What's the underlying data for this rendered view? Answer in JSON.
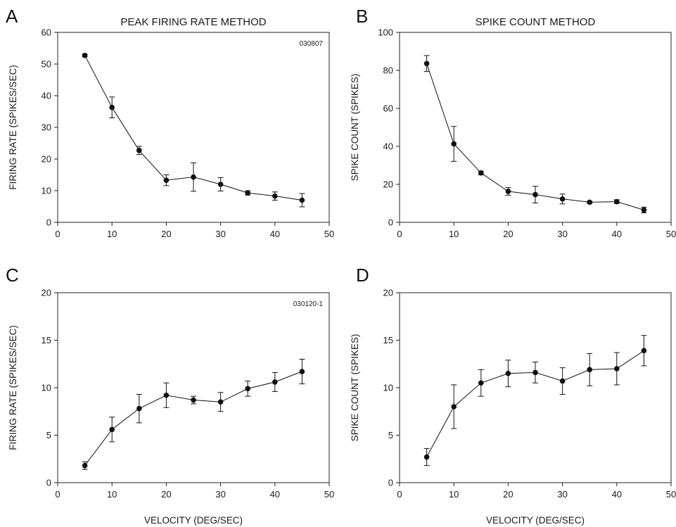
{
  "chart_data": [
    {
      "panel": "A",
      "type": "line",
      "title": "PEAK FIRING RATE METHOD",
      "annotation": "030807",
      "xlabel": "",
      "ylabel": "FIRING RATE (SPIKES/SEC)",
      "xlim": [
        0,
        50
      ],
      "ylim": [
        0,
        60
      ],
      "xticks": [
        0,
        10,
        20,
        30,
        40,
        50
      ],
      "yticks": [
        0,
        10,
        20,
        30,
        40,
        50,
        60
      ],
      "x": [
        5,
        10,
        15,
        20,
        25,
        30,
        35,
        40,
        45
      ],
      "y": [
        52.7,
        36.3,
        22.7,
        13.3,
        14.3,
        12.0,
        9.3,
        8.3,
        7.0
      ],
      "err": [
        0.4,
        3.3,
        1.3,
        1.7,
        4.5,
        2.1,
        0.7,
        1.3,
        2.1
      ],
      "grid": false
    },
    {
      "panel": "B",
      "type": "line",
      "title": "SPIKE COUNT METHOD",
      "xlabel": "",
      "ylabel": "SPIKE COUNT (SPIKES)",
      "xlim": [
        0,
        50
      ],
      "ylim": [
        0,
        100
      ],
      "xticks": [
        0,
        10,
        20,
        30,
        40,
        50
      ],
      "yticks": [
        0,
        20,
        40,
        60,
        80,
        100
      ],
      "x": [
        5,
        10,
        15,
        20,
        25,
        30,
        35,
        40,
        45
      ],
      "y": [
        83.6,
        41.3,
        26.0,
        16.3,
        14.6,
        12.3,
        10.6,
        10.9,
        6.5
      ],
      "err": [
        4.2,
        9.2,
        1.0,
        2.0,
        4.4,
        2.6,
        0.5,
        1.0,
        1.5
      ],
      "grid": false
    },
    {
      "panel": "C",
      "type": "line",
      "annotation": "030120-1",
      "xlabel": "VELOCITY (DEG/SEC)",
      "ylabel": "FIRING RATE (SPIKES/SEC)",
      "xlim": [
        0,
        50
      ],
      "ylim": [
        0,
        20
      ],
      "xticks": [
        0,
        10,
        20,
        30,
        40,
        50
      ],
      "yticks": [
        0,
        5,
        10,
        15,
        20
      ],
      "x": [
        5,
        10,
        15,
        20,
        25,
        30,
        35,
        40,
        45
      ],
      "y": [
        1.8,
        5.6,
        7.8,
        9.2,
        8.7,
        8.5,
        9.9,
        10.6,
        11.7
      ],
      "err": [
        0.4,
        1.3,
        1.5,
        1.3,
        0.4,
        1.0,
        0.8,
        1.0,
        1.3
      ],
      "grid": false
    },
    {
      "panel": "D",
      "type": "line",
      "xlabel": "VELOCITY (DEG/SEC)",
      "ylabel": "SPIKE COUNT (SPIKES)",
      "xlim": [
        0,
        50
      ],
      "ylim": [
        0,
        20
      ],
      "xticks": [
        0,
        10,
        20,
        30,
        40,
        50
      ],
      "yticks": [
        0,
        5,
        10,
        15,
        20
      ],
      "x": [
        5,
        10,
        15,
        20,
        25,
        30,
        35,
        40,
        45
      ],
      "y": [
        2.7,
        8.0,
        10.5,
        11.5,
        11.6,
        10.7,
        11.9,
        12.0,
        13.9
      ],
      "err": [
        0.9,
        2.3,
        1.4,
        1.4,
        1.1,
        1.4,
        1.7,
        1.7,
        1.6
      ],
      "grid": false
    }
  ]
}
